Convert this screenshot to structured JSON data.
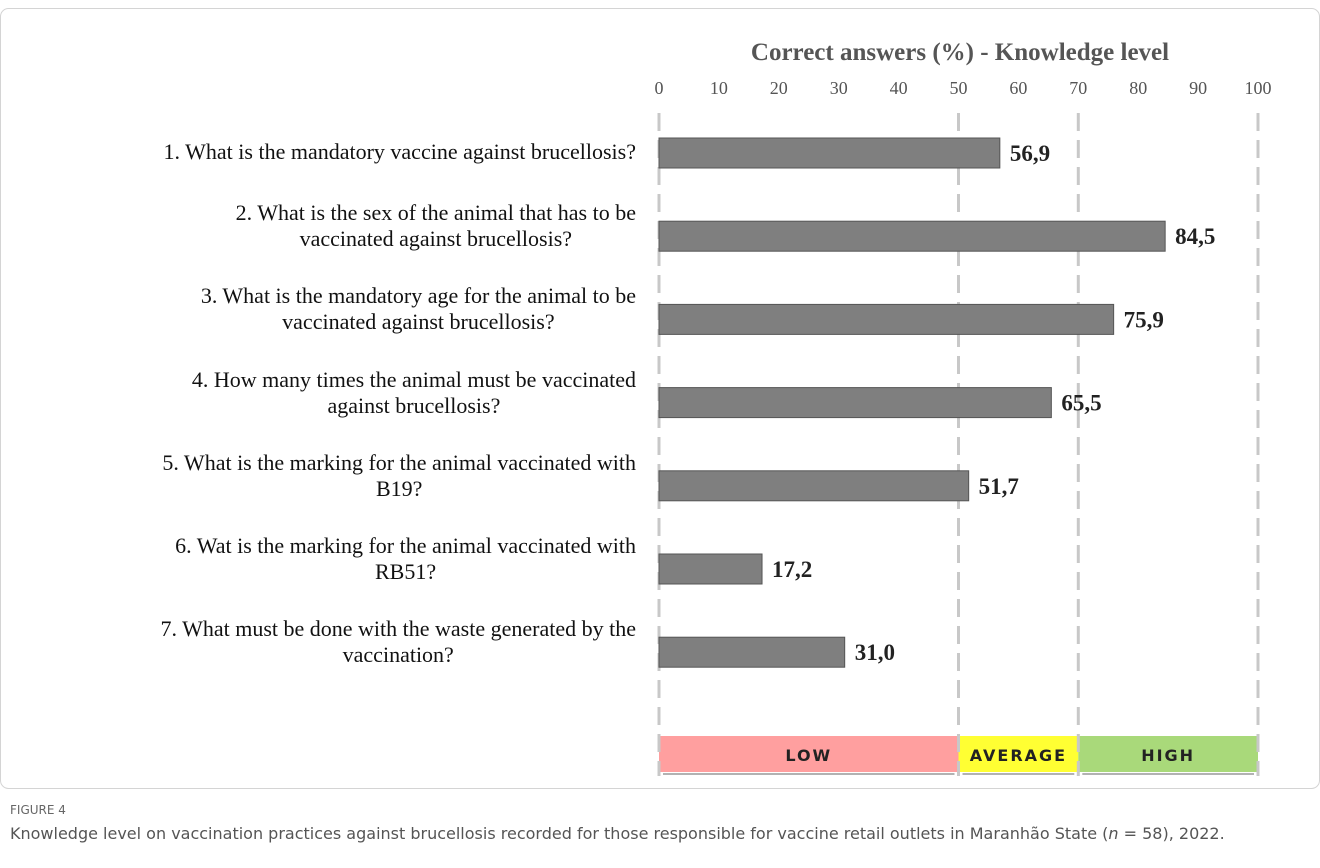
{
  "chart_data": {
    "type": "bar",
    "orientation": "horizontal",
    "title": "Correct answers (%) - Knowledge level",
    "categories": [
      "1. What is the mandatory vaccine against brucellosis?",
      "2. What is the sex of the animal that has to be\nvaccinated against brucellosis?",
      "3. What is the mandatory age for the animal to be\nvaccinated against brucellosis?",
      "4. How many times the animal must be vaccinated\nagainst brucellosis?",
      "5. What is the marking for the animal vaccinated with\nB19?",
      "6. Wat is the marking for the animal vaccinated with\nRB51?",
      "7. What must be done with the waste generated by the\nvaccination?"
    ],
    "values": [
      56.9,
      84.5,
      75.9,
      65.5,
      51.7,
      17.2,
      31.0
    ],
    "value_labels": [
      "56,9",
      "84,5",
      "75,9",
      "65,5",
      "51,7",
      "17,2",
      "31,0"
    ],
    "color": "#7f7f7f",
    "xlim": [
      0,
      100
    ],
    "xticks": [
      0,
      10,
      20,
      30,
      40,
      50,
      60,
      70,
      80,
      90,
      100
    ],
    "levels": [
      {
        "label": "LOW",
        "from": 0,
        "to": 50,
        "color": "#ff9f9f"
      },
      {
        "label": "AVERAGE",
        "from": 50,
        "to": 70,
        "color": "#ffff33"
      },
      {
        "label": "HIGH",
        "from": 70,
        "to": 100,
        "color": "#a9d97a"
      }
    ]
  },
  "caption": {
    "figure": "FIGURE 4",
    "before": "Knowledge level on vaccination practices against brucellosis recorded for those responsible for vaccine retail outlets in Maranhão State (",
    "n": "n",
    "after": " = 58), 2022."
  }
}
